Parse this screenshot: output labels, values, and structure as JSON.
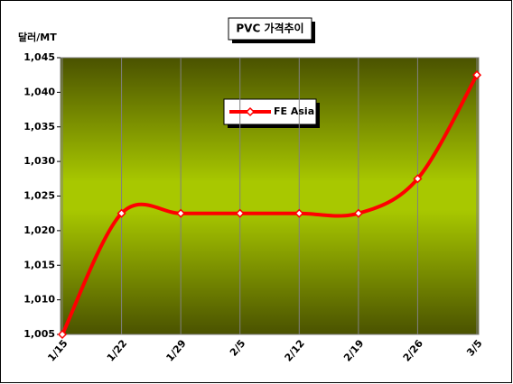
{
  "chart_data": {
    "type": "line",
    "title": "PVC 가격추이",
    "y_label": "달러/MT",
    "categories": [
      "1/15",
      "1/22",
      "1/29",
      "2/5",
      "2/12",
      "2/19",
      "2/26",
      "3/5"
    ],
    "series": [
      {
        "name": "FE Asia",
        "color": "#ff0000",
        "values": [
          1005,
          1022.5,
          1022.5,
          1022.5,
          1022.5,
          1022.5,
          1027.5,
          1042.5
        ]
      }
    ],
    "ylim": [
      1005,
      1045
    ],
    "yticks": [
      {
        "value": 1005,
        "label": "1,005"
      },
      {
        "value": 1010,
        "label": "1,010"
      },
      {
        "value": 1015,
        "label": "1,015"
      },
      {
        "value": 1020,
        "label": "1,020"
      },
      {
        "value": 1025,
        "label": "1,025"
      },
      {
        "value": 1030,
        "label": "1,030"
      },
      {
        "value": 1035,
        "label": "1,035"
      },
      {
        "value": 1040,
        "label": "1,040"
      },
      {
        "value": 1045,
        "label": "1,045"
      }
    ],
    "grid": true
  }
}
